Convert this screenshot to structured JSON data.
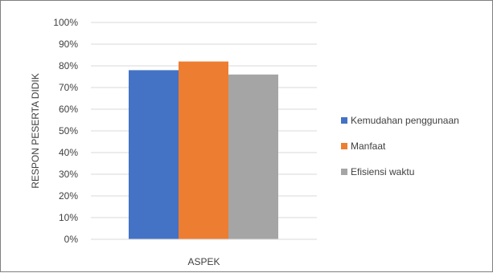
{
  "chart_data": {
    "type": "bar",
    "categories": [
      "ASPEK"
    ],
    "series": [
      {
        "name": "Kemudahan penggunaan",
        "values": [
          0.78
        ],
        "color": "#4472C4"
      },
      {
        "name": "Manfaat",
        "values": [
          0.82
        ],
        "color": "#ED7D31"
      },
      {
        "name": "Efisiensi waktu",
        "values": [
          0.76
        ],
        "color": "#A5A5A5"
      }
    ],
    "title": "",
    "xlabel": "ASPEK",
    "ylabel": "RESPON PESERTA DIDIK",
    "ylim": [
      0,
      1
    ],
    "yticks": [
      "0%",
      "10%",
      "20%",
      "30%",
      "40%",
      "50%",
      "60%",
      "70%",
      "80%",
      "90%",
      "100%"
    ],
    "grid": true,
    "legend_position": "right"
  }
}
